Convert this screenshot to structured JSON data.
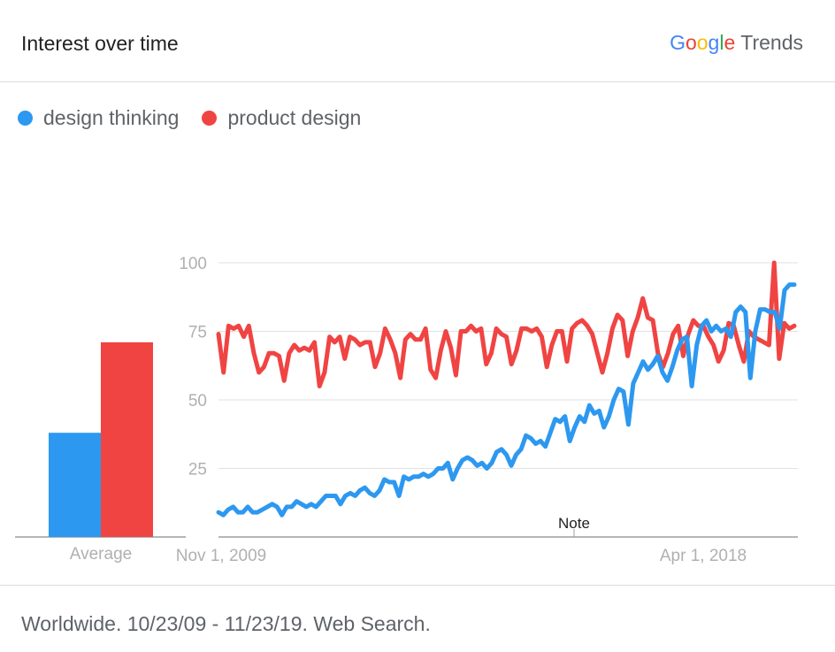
{
  "header": {
    "title": "Interest over time",
    "brand": {
      "google_letters": [
        "G",
        "o",
        "o",
        "g",
        "l",
        "e"
      ],
      "product": "Trends"
    }
  },
  "footer": {
    "summary": "Worldwide. 10/23/09 - 11/23/19. Web Search."
  },
  "colors": {
    "design_thinking": "#2d98f0",
    "product_design": "#f04443",
    "grid": "#e0e0e0",
    "axis": "#9e9e9e",
    "tick_text": "#b0b0b0"
  },
  "chart_data": {
    "type": "line",
    "x_range": [
      "10/23/09",
      "11/23/19"
    ],
    "xticks": [
      "Nov 1, 2009",
      "Apr 1, 2018"
    ],
    "yticks": [
      25,
      50,
      75,
      100
    ],
    "ylim": [
      0,
      100
    ],
    "annotation": "Note",
    "average": {
      "label": "Average",
      "values": [
        {
          "series": "design thinking",
          "value": 38
        },
        {
          "series": "product design",
          "value": 71
        }
      ]
    },
    "series": [
      {
        "name": "design thinking",
        "values": [
          9,
          8,
          10,
          11,
          9,
          9,
          11,
          9,
          9,
          10,
          11,
          12,
          11,
          8,
          11,
          11,
          13,
          12,
          11,
          12,
          11,
          13,
          15,
          15,
          15,
          12,
          15,
          16,
          15,
          17,
          18,
          16,
          15,
          17,
          21,
          20,
          20,
          15,
          22,
          21,
          22,
          22,
          23,
          22,
          23,
          25,
          25,
          27,
          21,
          25,
          28,
          29,
          28,
          26,
          27,
          25,
          27,
          31,
          32,
          30,
          26,
          30,
          32,
          37,
          36,
          34,
          35,
          33,
          38,
          43,
          42,
          44,
          35,
          40,
          44,
          42,
          48,
          45,
          46,
          40,
          44,
          50,
          54,
          53,
          41,
          56,
          60,
          64,
          61,
          63,
          66,
          60,
          57,
          62,
          68,
          72,
          73,
          55,
          70,
          77,
          79,
          75,
          77,
          75,
          76,
          73,
          82,
          84,
          82,
          58,
          75,
          83,
          83,
          82,
          82,
          76,
          90,
          92,
          92
        ]
      },
      {
        "name": "product design",
        "values": [
          74,
          60,
          77,
          76,
          77,
          73,
          77,
          67,
          60,
          62,
          67,
          67,
          66,
          57,
          67,
          70,
          68,
          69,
          68,
          71,
          55,
          60,
          73,
          71,
          73,
          65,
          73,
          72,
          70,
          71,
          71,
          62,
          67,
          76,
          72,
          67,
          58,
          72,
          74,
          72,
          72,
          76,
          61,
          58,
          68,
          75,
          69,
          59,
          75,
          75,
          77,
          75,
          76,
          63,
          67,
          76,
          74,
          73,
          63,
          68,
          76,
          76,
          75,
          76,
          73,
          62,
          70,
          75,
          75,
          64,
          76,
          78,
          79,
          77,
          74,
          67,
          60,
          67,
          76,
          81,
          79,
          66,
          75,
          80,
          87,
          80,
          79,
          67,
          62,
          67,
          74,
          77,
          66,
          74,
          79,
          77,
          77,
          73,
          70,
          64,
          68,
          78,
          77,
          70,
          64,
          75,
          73,
          72,
          71,
          70,
          100,
          65,
          78,
          76,
          77
        ]
      }
    ]
  }
}
